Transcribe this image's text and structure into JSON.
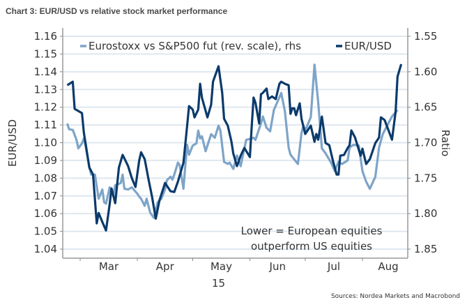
{
  "title": "Chart 3: EUR/USD vs relative stock market performance",
  "source": "Sources: Nordea Markets and Macrobond",
  "chart_data": {
    "type": "line",
    "title": "Chart 3: EUR/USD vs relative stock market performance",
    "ylabel": "EUR/USD",
    "y2label": "Ratio",
    "ylim": [
      1.04,
      1.16
    ],
    "y2lim": [
      1.55,
      1.85
    ],
    "y2_reversed": true,
    "yticks": [
      "1.04",
      "1.05",
      "1.06",
      "1.07",
      "1.08",
      "1.09",
      "1.10",
      "1.11",
      "1.12",
      "1.13",
      "1.14",
      "1.15",
      "1.16"
    ],
    "y2ticks": [
      "1.55",
      "1.60",
      "1.65",
      "1.70",
      "1.75",
      "1.80",
      "1.85"
    ],
    "xticks": [
      "Mar",
      "Apr",
      "May",
      "Jun",
      "Jul",
      "Aug"
    ],
    "xyear": "15",
    "grid": true,
    "legend_position": "top",
    "annotation": [
      "Lower = European equities",
      "outperform US equities"
    ],
    "series": [
      {
        "name": "Eurostoxx vs S&P500 fut (rev. scale), rhs",
        "axis": "right",
        "color": "#7ea4c8",
        "points": [
          [
            "2015-02-22",
            1.673
          ],
          [
            "2015-02-23",
            1.681
          ],
          [
            "2015-02-25",
            1.682
          ],
          [
            "2015-02-27",
            1.696
          ],
          [
            "2015-02-28",
            1.708
          ],
          [
            "2015-03-02",
            1.701
          ],
          [
            "2015-03-03",
            1.694
          ],
          [
            "2015-03-04",
            1.705
          ],
          [
            "2015-03-06",
            1.735
          ],
          [
            "2015-03-07",
            1.745
          ],
          [
            "2015-03-09",
            1.745
          ],
          [
            "2015-03-11",
            1.779
          ],
          [
            "2015-03-13",
            1.766
          ],
          [
            "2015-03-14",
            1.784
          ],
          [
            "2015-03-15",
            1.786
          ],
          [
            "2015-03-17",
            1.763
          ],
          [
            "2015-03-18",
            1.772
          ],
          [
            "2015-03-19",
            1.774
          ],
          [
            "2015-03-20",
            1.76
          ],
          [
            "2015-03-23",
            1.757
          ],
          [
            "2015-03-24",
            1.745
          ],
          [
            "2015-03-25",
            1.765
          ],
          [
            "2015-03-27",
            1.766
          ],
          [
            "2015-03-29",
            1.763
          ],
          [
            "2015-04-01",
            1.772
          ],
          [
            "2015-04-02",
            1.776
          ],
          [
            "2015-04-03",
            1.779
          ],
          [
            "2015-04-05",
            1.789
          ],
          [
            "2015-04-06",
            1.779
          ],
          [
            "2015-04-08",
            1.799
          ],
          [
            "2015-04-10",
            1.806
          ],
          [
            "2015-04-12",
            1.784
          ],
          [
            "2015-04-14",
            1.779
          ],
          [
            "2015-04-16",
            1.766
          ],
          [
            "2015-04-17",
            1.753
          ],
          [
            "2015-04-19",
            1.748
          ],
          [
            "2015-04-20",
            1.752
          ],
          [
            "2015-04-21",
            1.745
          ],
          [
            "2015-04-23",
            1.728
          ],
          [
            "2015-04-24",
            1.732
          ],
          [
            "2015-04-26",
            1.765
          ],
          [
            "2015-04-27",
            1.732
          ],
          [
            "2015-04-28",
            1.703
          ],
          [
            "2015-04-29",
            1.717
          ],
          [
            "2015-05-01",
            1.704
          ],
          [
            "2015-05-03",
            1.701
          ],
          [
            "2015-05-04",
            1.683
          ],
          [
            "2015-05-05",
            1.694
          ],
          [
            "2015-05-06",
            1.691
          ],
          [
            "2015-05-08",
            1.712
          ],
          [
            "2015-05-11",
            1.688
          ],
          [
            "2015-05-13",
            1.693
          ],
          [
            "2015-05-15",
            1.676
          ],
          [
            "2015-05-16",
            1.683
          ],
          [
            "2015-05-18",
            1.727
          ],
          [
            "2015-05-20",
            1.73
          ],
          [
            "2015-05-21",
            1.728
          ],
          [
            "2015-05-23",
            1.737
          ],
          [
            "2015-05-25",
            1.718
          ],
          [
            "2015-05-27",
            1.733
          ],
          [
            "2015-05-30",
            1.696
          ],
          [
            "2015-06-02",
            1.694
          ],
          [
            "2015-06-03",
            1.693
          ],
          [
            "2015-06-04",
            1.696
          ],
          [
            "2015-06-07",
            1.673
          ],
          [
            "2015-06-08",
            1.663
          ],
          [
            "2015-06-10",
            1.679
          ],
          [
            "2015-06-12",
            1.684
          ],
          [
            "2015-06-14",
            1.654
          ],
          [
            "2015-06-16",
            1.642
          ],
          [
            "2015-06-18",
            1.63
          ],
          [
            "2015-06-20",
            1.656
          ],
          [
            "2015-06-22",
            1.707
          ],
          [
            "2015-06-23",
            1.717
          ],
          [
            "2015-06-27",
            1.73
          ],
          [
            "2015-06-29",
            1.686
          ],
          [
            "2015-06-30",
            1.676
          ],
          [
            "2015-07-01",
            1.683
          ],
          [
            "2015-07-04",
            1.664
          ],
          [
            "2015-07-06",
            1.59
          ],
          [
            "2015-07-08",
            1.643
          ],
          [
            "2015-07-10",
            1.708
          ],
          [
            "2015-07-12",
            1.715
          ],
          [
            "2015-07-15",
            1.728
          ],
          [
            "2015-07-17",
            1.74
          ],
          [
            "2015-07-19",
            1.727
          ],
          [
            "2015-07-21",
            1.73
          ],
          [
            "2015-07-24",
            1.725
          ],
          [
            "2015-07-25",
            1.707
          ],
          [
            "2015-07-27",
            1.703
          ],
          [
            "2015-07-30",
            1.704
          ],
          [
            "2015-08-01",
            1.74
          ],
          [
            "2015-08-03",
            1.755
          ],
          [
            "2015-08-05",
            1.765
          ],
          [
            "2015-08-08",
            1.748
          ],
          [
            "2015-08-10",
            1.707
          ],
          [
            "2015-08-12",
            1.688
          ],
          [
            "2015-08-15",
            1.673
          ],
          [
            "2015-08-17",
            1.663
          ],
          [
            "2015-08-20",
            1.654
          ]
        ]
      },
      {
        "name": "EUR/USD",
        "axis": "left",
        "color": "#0b3a6b",
        "points": [
          [
            "2015-02-22",
            1.1324
          ],
          [
            "2015-02-25",
            1.1344
          ],
          [
            "2015-02-26",
            1.1191
          ],
          [
            "2015-03-02",
            1.1167
          ],
          [
            "2015-03-03",
            1.1057
          ],
          [
            "2015-03-06",
            1.086
          ],
          [
            "2015-03-08",
            1.082
          ],
          [
            "2015-03-10",
            1.0545
          ],
          [
            "2015-03-11",
            1.0604
          ],
          [
            "2015-03-13",
            1.0553
          ],
          [
            "2015-03-15",
            1.0505
          ],
          [
            "2015-03-17",
            1.0655
          ],
          [
            "2015-03-18",
            1.0742
          ],
          [
            "2015-03-20",
            1.0659
          ],
          [
            "2015-03-22",
            1.086
          ],
          [
            "2015-03-24",
            1.0931
          ],
          [
            "2015-03-25",
            1.0911
          ],
          [
            "2015-03-27",
            1.0868
          ],
          [
            "2015-03-29",
            1.0801
          ],
          [
            "2015-03-31",
            1.075
          ],
          [
            "2015-04-02",
            1.0899
          ],
          [
            "2015-04-03",
            1.0946
          ],
          [
            "2015-04-05",
            1.0907
          ],
          [
            "2015-04-07",
            1.0797
          ],
          [
            "2015-04-09",
            1.0694
          ],
          [
            "2015-04-11",
            1.0572
          ],
          [
            "2015-04-13",
            1.0675
          ],
          [
            "2015-04-16",
            1.0773
          ],
          [
            "2015-04-19",
            1.0726
          ],
          [
            "2015-04-21",
            1.0722
          ],
          [
            "2015-04-23",
            1.0781
          ],
          [
            "2015-04-26",
            1.0887
          ],
          [
            "2015-04-28",
            1.1096
          ],
          [
            "2015-04-29",
            1.1206
          ],
          [
            "2015-05-01",
            1.1187
          ],
          [
            "2015-05-02",
            1.1143
          ],
          [
            "2015-05-04",
            1.1187
          ],
          [
            "2015-05-05",
            1.1332
          ],
          [
            "2015-05-06",
            1.1254
          ],
          [
            "2015-05-09",
            1.1143
          ],
          [
            "2015-05-11",
            1.1214
          ],
          [
            "2015-05-12",
            1.1344
          ],
          [
            "2015-05-15",
            1.1431
          ],
          [
            "2015-05-17",
            1.1281
          ],
          [
            "2015-05-18",
            1.1135
          ],
          [
            "2015-05-20",
            1.1096
          ],
          [
            "2015-05-22",
            1.1005
          ],
          [
            "2015-05-23",
            1.0939
          ],
          [
            "2015-05-25",
            1.0868
          ],
          [
            "2015-05-27",
            1.0927
          ],
          [
            "2015-05-29",
            1.097
          ],
          [
            "2015-06-01",
            1.0919
          ],
          [
            "2015-06-02",
            1.1096
          ],
          [
            "2015-06-03",
            1.1254
          ],
          [
            "2015-06-04",
            1.1226
          ],
          [
            "2015-06-06",
            1.1108
          ],
          [
            "2015-06-07",
            1.1273
          ],
          [
            "2015-06-08",
            1.1281
          ],
          [
            "2015-06-10",
            1.1305
          ],
          [
            "2015-06-11",
            1.1246
          ],
          [
            "2015-06-13",
            1.1261
          ],
          [
            "2015-06-15",
            1.1246
          ],
          [
            "2015-06-17",
            1.1332
          ],
          [
            "2015-06-18",
            1.1344
          ],
          [
            "2015-06-20",
            1.1332
          ],
          [
            "2015-06-22",
            1.1324
          ],
          [
            "2015-06-23",
            1.1163
          ],
          [
            "2015-06-24",
            1.1194
          ],
          [
            "2015-06-25",
            1.1194
          ],
          [
            "2015-06-26",
            1.1155
          ],
          [
            "2015-06-28",
            1.1222
          ],
          [
            "2015-06-29",
            1.1135
          ],
          [
            "2015-07-01",
            1.1049
          ],
          [
            "2015-07-04",
            1.1096
          ],
          [
            "2015-07-06",
            1.1005
          ],
          [
            "2015-07-07",
            1.1049
          ],
          [
            "2015-07-08",
            1.1017
          ],
          [
            "2015-07-10",
            1.1147
          ],
          [
            "2015-07-12",
            1.0998
          ],
          [
            "2015-07-14",
            1.0986
          ],
          [
            "2015-07-16",
            1.0899
          ],
          [
            "2015-07-18",
            1.082
          ],
          [
            "2015-07-19",
            1.082
          ],
          [
            "2015-07-20",
            1.0927
          ],
          [
            "2015-07-22",
            1.0931
          ],
          [
            "2015-07-24",
            1.097
          ],
          [
            "2015-07-25",
            1.0986
          ],
          [
            "2015-07-26",
            1.1069
          ],
          [
            "2015-07-28",
            1.1029
          ],
          [
            "2015-07-31",
            1.0927
          ],
          [
            "2015-08-01",
            1.0966
          ],
          [
            "2015-08-03",
            1.088
          ],
          [
            "2015-08-05",
            1.0907
          ],
          [
            "2015-08-08",
            1.0998
          ],
          [
            "2015-08-10",
            1.1029
          ],
          [
            "2015-08-11",
            1.1143
          ],
          [
            "2015-08-13",
            1.1128
          ],
          [
            "2015-08-17",
            1.1017
          ],
          [
            "2015-08-19",
            1.1175
          ],
          [
            "2015-08-20",
            1.1372
          ],
          [
            "2015-08-22",
            1.1443
          ]
        ]
      }
    ]
  }
}
